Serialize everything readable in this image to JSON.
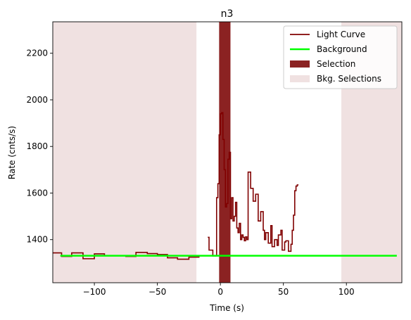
{
  "chart_data": {
    "type": "line",
    "title": "n3",
    "xlabel": "Time (s)",
    "ylabel": "Rate (cnts/s)",
    "xlim": [
      -133,
      144
    ],
    "ylim": [
      1215,
      2335
    ],
    "x_ticks": [
      -100,
      -50,
      0,
      50,
      100
    ],
    "x_tick_labels": [
      "−100",
      "−50",
      "0",
      "50",
      "100"
    ],
    "y_ticks": [
      1400,
      1600,
      1800,
      2000,
      2200
    ],
    "y_tick_labels": [
      "1400",
      "1600",
      "1800",
      "2000",
      "2200"
    ],
    "grid": false,
    "legend_position": "top-right",
    "legend": [
      {
        "label": "Light Curve",
        "kind": "line",
        "color": "#800000"
      },
      {
        "label": "Background",
        "kind": "line",
        "color": "#00ff00"
      },
      {
        "label": "Selection",
        "kind": "patch",
        "color": "#8b2222"
      },
      {
        "label": "Bkg. Selections",
        "kind": "patch",
        "color": "#f0e1e1"
      }
    ],
    "bkg_selections": [
      [
        -133,
        -19
      ],
      [
        96,
        144
      ]
    ],
    "selection": [
      -1,
      8
    ],
    "background_level": 1331,
    "background_range": [
      -127,
      140
    ],
    "series": [
      {
        "name": "Light Curve",
        "color": "#800000",
        "segments": [
          [
            [
              -133,
              1343
            ],
            [
              -126,
              1343
            ],
            [
              -126,
              1328
            ],
            [
              -118,
              1328
            ],
            [
              -118,
              1343
            ],
            [
              -109,
              1343
            ],
            [
              -109,
              1318
            ],
            [
              -100,
              1318
            ],
            [
              -100,
              1339
            ],
            [
              -92,
              1339
            ],
            [
              -92,
              1331
            ],
            [
              -75,
              1331
            ],
            [
              -75,
              1328
            ],
            [
              -67,
              1328
            ],
            [
              -67,
              1345
            ],
            [
              -58,
              1345
            ],
            [
              -58,
              1340
            ],
            [
              -50,
              1340
            ],
            [
              -50,
              1336
            ],
            [
              -42,
              1336
            ],
            [
              -42,
              1322
            ],
            [
              -34,
              1322
            ],
            [
              -34,
              1316
            ],
            [
              -25,
              1316
            ],
            [
              -25,
              1325
            ],
            [
              -17,
              1325
            ],
            [
              -17,
              1331
            ],
            [
              -9,
              1331
            ]
          ],
          [
            [
              -10,
              1410
            ],
            [
              -9,
              1410
            ],
            [
              -9,
              1355
            ],
            [
              -6,
              1355
            ],
            [
              -6,
              1330
            ],
            [
              -3,
              1330
            ],
            [
              -3,
              1580
            ],
            [
              -2,
              1580
            ],
            [
              -2,
              1640
            ],
            [
              -1,
              1640
            ],
            [
              -1,
              1850
            ],
            [
              0,
              1850
            ],
            [
              0,
              1940
            ],
            [
              1,
              1940
            ],
            [
              1,
              1945
            ],
            [
              2,
              1945
            ],
            [
              2,
              1830
            ],
            [
              3,
              1830
            ],
            [
              3,
              1700
            ],
            [
              4,
              1700
            ],
            [
              4,
              1540
            ],
            [
              5,
              1540
            ],
            [
              5,
              1555
            ],
            [
              6,
              1555
            ],
            [
              6,
              1745
            ],
            [
              7,
              1745
            ],
            [
              7,
              1775
            ],
            [
              8,
              1775
            ],
            [
              8,
              1490
            ],
            [
              9,
              1490
            ],
            [
              9,
              1580
            ],
            [
              10,
              1580
            ],
            [
              10,
              1480
            ],
            [
              11,
              1480
            ],
            [
              11,
              1500
            ],
            [
              12,
              1500
            ],
            [
              12,
              1560
            ],
            [
              13,
              1560
            ],
            [
              13,
              1450
            ],
            [
              14,
              1450
            ],
            [
              14,
              1430
            ],
            [
              15,
              1430
            ],
            [
              15,
              1470
            ],
            [
              16,
              1470
            ],
            [
              16,
              1400
            ],
            [
              17,
              1400
            ],
            [
              17,
              1420
            ],
            [
              18,
              1420
            ],
            [
              18,
              1410
            ],
            [
              19,
              1410
            ],
            [
              19,
              1395
            ],
            [
              20,
              1395
            ],
            [
              20,
              1412
            ],
            [
              21,
              1412
            ],
            [
              21,
              1400
            ],
            [
              22,
              1400
            ],
            [
              22,
              1690
            ],
            [
              24,
              1690
            ],
            [
              24,
              1620
            ],
            [
              26,
              1620
            ],
            [
              26,
              1565
            ],
            [
              28,
              1565
            ],
            [
              28,
              1595
            ],
            [
              30,
              1595
            ],
            [
              30,
              1480
            ],
            [
              32,
              1480
            ],
            [
              32,
              1520
            ],
            [
              34,
              1520
            ],
            [
              34,
              1440
            ],
            [
              35,
              1440
            ],
            [
              35,
              1400
            ],
            [
              36,
              1400
            ],
            [
              36,
              1430
            ],
            [
              38,
              1430
            ],
            [
              38,
              1385
            ],
            [
              40,
              1385
            ],
            [
              40,
              1460
            ],
            [
              41,
              1460
            ],
            [
              41,
              1370
            ],
            [
              43,
              1370
            ],
            [
              43,
              1400
            ],
            [
              45,
              1400
            ],
            [
              45,
              1375
            ],
            [
              46,
              1375
            ],
            [
              46,
              1420
            ],
            [
              48,
              1420
            ],
            [
              48,
              1440
            ],
            [
              49,
              1440
            ],
            [
              49,
              1355
            ],
            [
              51,
              1355
            ],
            [
              51,
              1390
            ],
            [
              52,
              1390
            ],
            [
              52,
              1395
            ],
            [
              54,
              1395
            ],
            [
              54,
              1350
            ],
            [
              56,
              1350
            ],
            [
              56,
              1380
            ],
            [
              57,
              1380
            ],
            [
              57,
              1440
            ],
            [
              58,
              1440
            ],
            [
              58,
              1505
            ],
            [
              59,
              1505
            ],
            [
              59,
              1610
            ],
            [
              60,
              1610
            ],
            [
              60,
              1630
            ],
            [
              61,
              1630
            ],
            [
              61,
              1635
            ],
            [
              62,
              1635
            ]
          ]
        ]
      }
    ]
  }
}
